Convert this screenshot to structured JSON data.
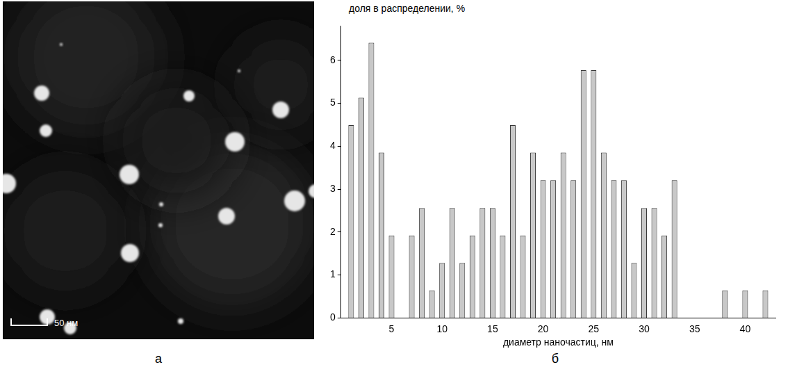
{
  "panels": {
    "a": {
      "label": "а",
      "scale_bar_label": "50 нм"
    },
    "b": {
      "label": "б"
    }
  },
  "chart_data": {
    "type": "bar",
    "y_label": "доля в распределении, %",
    "x_label": "диаметр наночастиц, нм",
    "x": [
      1,
      2,
      3,
      4,
      5,
      7,
      8,
      9,
      10,
      11,
      12,
      13,
      14,
      15,
      16,
      17,
      18,
      19,
      20,
      21,
      22,
      23,
      24,
      25,
      26,
      27,
      28,
      29,
      30,
      31,
      32,
      33,
      38,
      40,
      42
    ],
    "values": [
      4.49,
      5.13,
      6.41,
      3.85,
      1.92,
      1.92,
      2.56,
      0.64,
      1.28,
      2.56,
      1.28,
      1.92,
      2.56,
      2.56,
      1.92,
      4.49,
      1.92,
      3.85,
      3.21,
      3.21,
      3.85,
      3.21,
      5.77,
      5.77,
      3.85,
      3.21,
      3.21,
      1.28,
      2.56,
      2.56,
      1.92,
      3.21,
      0.64,
      0.64,
      0.64
    ],
    "color": "#c8c8c8",
    "xlim": [
      0,
      43
    ],
    "xticks": [
      5,
      10,
      15,
      20,
      25,
      30,
      35,
      40
    ],
    "ylim": [
      0,
      6.8
    ],
    "yticks": [
      0,
      1,
      2,
      3,
      4,
      5,
      6
    ],
    "grid": false
  }
}
